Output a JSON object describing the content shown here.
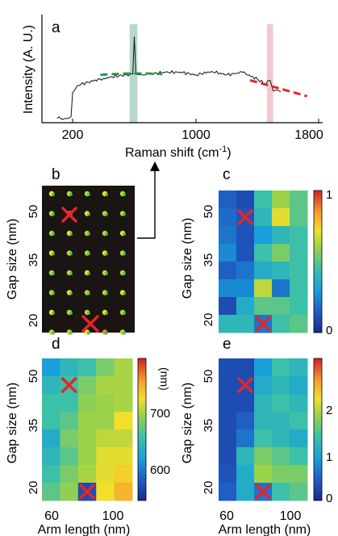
{
  "figure": {
    "panel_a": {
      "label": "a",
      "ylabel": "Intensity (A. U.)",
      "xlabel_main": "Raman shift (cm",
      "xlabel_sup": "-1",
      "xlabel_close": ")",
      "xticks": [
        "200",
        "1000",
        "1800"
      ],
      "highlight_colors": {
        "peak1": "#b5d9c9",
        "peak2": "#f3c9cc"
      },
      "fit_colors": {
        "left": "#1f9e4a",
        "right": "#e8232a"
      }
    },
    "panel_b": {
      "label": "b",
      "ylabel": "Gap size (nm)",
      "yticks": [
        "50",
        "35",
        "20"
      ],
      "marker_color": "#e8232a"
    },
    "panel_c": {
      "label": "c",
      "ylabel": "Gap size (nm)",
      "yticks": [
        "50",
        "35",
        "20"
      ],
      "colorbar_ticks": [
        "1",
        "0"
      ]
    },
    "panel_d": {
      "label": "d",
      "ylabel": "Gap size (nm)",
      "yticks": [
        "50",
        "35",
        "20"
      ],
      "xticks": [
        "60",
        "100"
      ],
      "xlabel": "Arm length (nm)",
      "colorbar_unit": "(nm)",
      "colorbar_ticks": [
        "700",
        "600"
      ]
    },
    "panel_e": {
      "label": "e",
      "ylabel": "Gap size (nm)",
      "yticks": [
        "50",
        "35",
        "20"
      ],
      "xticks": [
        "60",
        "100"
      ],
      "xlabel": "Arm length (nm)",
      "colorbar_ticks": [
        "2",
        "1",
        "0"
      ]
    }
  },
  "chart_data": [
    {
      "type": "line",
      "panel": "a",
      "xlabel": "Raman shift (cm-1)",
      "ylabel": "Intensity (A. U.)",
      "xlim": [
        80,
        1800
      ],
      "ylim": [
        0,
        1
      ],
      "x": [
        100,
        150,
        190,
        200,
        230,
        300,
        400,
        500,
        550,
        590,
        600,
        610,
        650,
        700,
        800,
        900,
        1000,
        1100,
        1200,
        1300,
        1400,
        1450,
        1480,
        1500,
        1520,
        1550
      ],
      "y": [
        0.03,
        0.03,
        0.05,
        0.32,
        0.4,
        0.44,
        0.48,
        0.51,
        0.52,
        0.53,
        0.95,
        0.53,
        0.52,
        0.53,
        0.55,
        0.55,
        0.52,
        0.56,
        0.52,
        0.55,
        0.47,
        0.41,
        0.46,
        0.34,
        0.35,
        0.33
      ],
      "highlight_x": [
        [
          570,
          620
        ],
        [
          1460,
          1500
        ]
      ],
      "fit_left": {
        "x": [
          380,
          780
        ],
        "y": [
          0.52,
          0.53
        ]
      },
      "fit_right": {
        "x": [
          1350,
          1720
        ],
        "y": [
          0.46,
          0.28
        ]
      }
    },
    {
      "type": "heatmap",
      "panel": "c",
      "xlim": [
        55,
        105
      ],
      "rows_top_to_bottom": [
        [
          0.15,
          0.1,
          0.45,
          0.6,
          0.5
        ],
        [
          0.18,
          0.12,
          0.4,
          0.7,
          0.5
        ],
        [
          0.2,
          0.12,
          0.3,
          0.4,
          0.45
        ],
        [
          0.25,
          0.12,
          0.45,
          0.55,
          0.45
        ],
        [
          0.15,
          0.2,
          0.35,
          0.4,
          0.45
        ],
        [
          0.25,
          0.25,
          0.65,
          0.2,
          0.45
        ],
        [
          0.1,
          0.35,
          0.5,
          0.5,
          0.45
        ],
        [
          0.4,
          0.4,
          0.2,
          0.45,
          0.5
        ]
      ],
      "colorbar_range": [
        0,
        1
      ],
      "markers": [
        {
          "col": 1,
          "row": 1
        },
        {
          "col": 2,
          "row": 7
        }
      ]
    },
    {
      "type": "heatmap",
      "panel": "d",
      "xlim": [
        55,
        105
      ],
      "rows_top_to_bottom": [
        [
          0.3,
          0.4,
          0.45,
          0.55,
          0.62
        ],
        [
          0.4,
          0.45,
          0.55,
          0.62,
          0.62
        ],
        [
          0.45,
          0.45,
          0.58,
          0.6,
          0.62
        ],
        [
          0.45,
          0.5,
          0.6,
          0.6,
          0.72
        ],
        [
          0.35,
          0.55,
          0.6,
          0.65,
          0.65
        ],
        [
          0.4,
          0.5,
          0.6,
          0.7,
          0.7
        ],
        [
          0.45,
          0.55,
          0.62,
          0.7,
          0.75
        ],
        [
          0.5,
          0.58,
          0.1,
          0.72,
          0.8
        ]
      ],
      "colorbar_range": [
        550,
        760
      ],
      "markers": [
        {
          "col": 1,
          "row": 1
        },
        {
          "col": 2,
          "row": 7
        }
      ]
    },
    {
      "type": "heatmap",
      "panel": "e",
      "xlim": [
        55,
        105
      ],
      "rows_top_to_bottom": [
        [
          0.1,
          0.1,
          0.3,
          0.45,
          0.4
        ],
        [
          0.1,
          0.1,
          0.35,
          0.4,
          0.35
        ],
        [
          0.1,
          0.1,
          0.4,
          0.45,
          0.4
        ],
        [
          0.1,
          0.15,
          0.4,
          0.4,
          0.45
        ],
        [
          0.1,
          0.2,
          0.45,
          0.4,
          0.35
        ],
        [
          0.1,
          0.4,
          0.55,
          0.5,
          0.45
        ],
        [
          0.12,
          0.35,
          0.6,
          0.55,
          0.55
        ],
        [
          0.15,
          0.35,
          0.2,
          0.45,
          0.5
        ]
      ],
      "colorbar_range": [
        0,
        2.5
      ],
      "markers": [
        {
          "col": 1,
          "row": 1
        },
        {
          "col": 2,
          "row": 7
        }
      ]
    }
  ]
}
